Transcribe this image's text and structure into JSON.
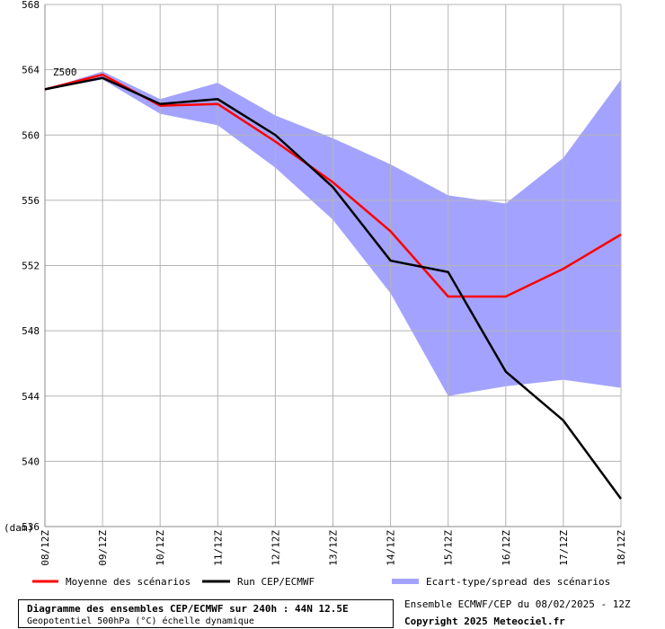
{
  "chart_data": {
    "type": "line",
    "title": "Diagramme des ensembles CEP/ECMWF sur 240h : 44N 12.5E",
    "subtitle": "Geopotentiel 500hPa (°C) échelle dynamique",
    "ylabel": "(dam)",
    "series_label": "Z500",
    "x": [
      "08/12Z",
      "09/12Z",
      "10/12Z",
      "11/12Z",
      "12/12Z",
      "13/12Z",
      "14/12Z",
      "15/12Z",
      "16/12Z",
      "17/12Z",
      "18/12Z"
    ],
    "ylim": [
      536,
      568
    ],
    "yticks": [
      536,
      540,
      544,
      548,
      552,
      556,
      560,
      564,
      568
    ],
    "grid": true,
    "series": [
      {
        "name": "Moyenne des scénarios",
        "color": "#ff0000",
        "values": [
          562.8,
          563.7,
          561.8,
          561.9,
          559.6,
          557.1,
          554.1,
          550.1,
          550.1,
          551.8,
          553.9
        ]
      },
      {
        "name": "Run CEP/ECMWF",
        "color": "#000000",
        "values": [
          562.8,
          563.5,
          561.9,
          562.2,
          560.0,
          556.8,
          552.3,
          551.6,
          545.5,
          542.5,
          537.7
        ]
      }
    ],
    "spread": {
      "name": "Ecart-type/spread des scénarios",
      "color": "#a3a3ff",
      "upper": [
        562.8,
        563.9,
        562.2,
        563.2,
        561.2,
        559.8,
        558.2,
        556.3,
        555.8,
        558.6,
        563.4
      ],
      "lower": [
        562.8,
        563.4,
        561.3,
        560.6,
        558.0,
        554.8,
        550.3,
        544.0,
        544.6,
        545.0,
        544.5
      ]
    }
  },
  "footer": {
    "run_info": "Ensemble ECMWF/CEP du 08/02/2025 - 12Z",
    "copyright": "Copyright 2025 Meteociel.fr"
  }
}
